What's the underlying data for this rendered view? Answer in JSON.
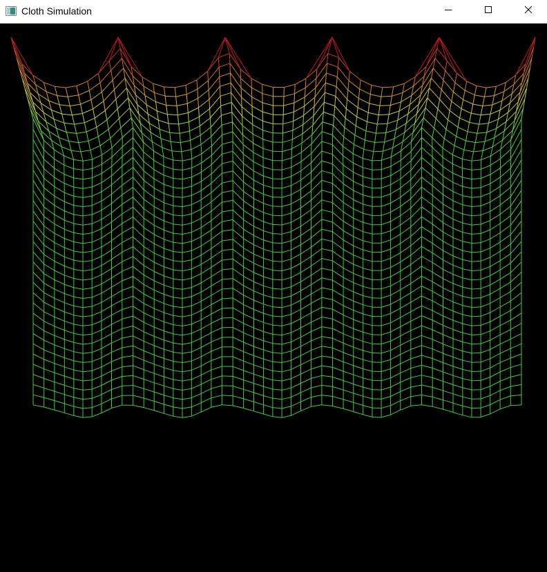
{
  "window": {
    "title": "Cloth Simulation",
    "icon": "app-window-icon",
    "controls": {
      "minimize_icon": "minimize-icon",
      "maximize_icon": "maximize-icon",
      "close_icon": "close-icon"
    }
  },
  "scene": {
    "background_color": "#000000",
    "mesh": {
      "columns": 50,
      "rows": 37,
      "pin_count": 6,
      "color_ramp": [
        "#c41a1a",
        "#d08a26",
        "#c8d235",
        "#4fcf3a",
        "#3fce3e"
      ]
    }
  }
}
